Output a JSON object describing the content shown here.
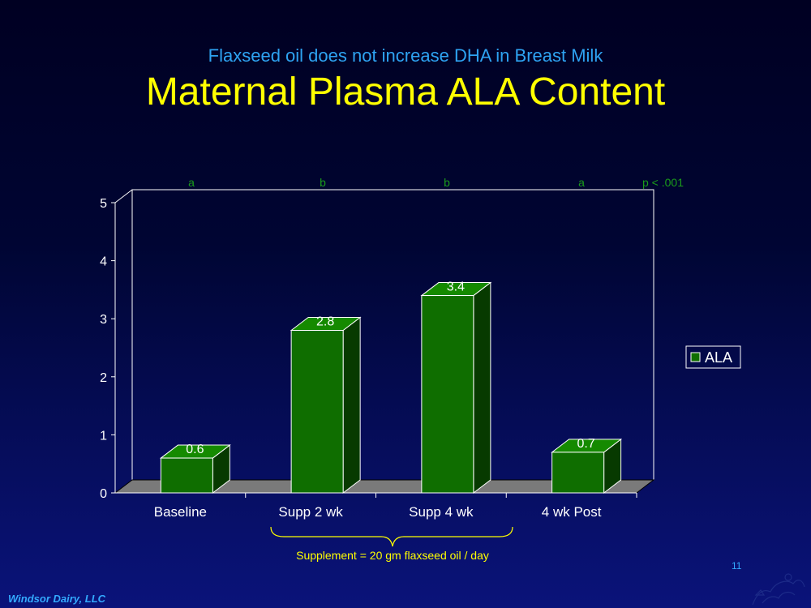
{
  "slide": {
    "subtitle": "Flaxseed oil does not increase DHA in Breast Milk",
    "title": "Maternal Plasma ALA Content",
    "footer": "Windsor Dairy, LLC",
    "slide_number": "11"
  },
  "colors": {
    "bar_front": "#0f6e00",
    "bar_top": "#158a00",
    "bar_side": "#073a00",
    "text_green": "#1a9c1a",
    "yellow": "#ffff00",
    "blue_text": "#2ea3f2",
    "floor": "#7a7a7a"
  },
  "chart_data": {
    "type": "bar",
    "categories": [
      "Baseline",
      "Supp 2 wk",
      "Supp 4 wk",
      "4 wk Post"
    ],
    "series": [
      {
        "name": "ALA",
        "values": [
          0.6,
          2.8,
          3.4,
          0.7
        ]
      }
    ],
    "data_labels": [
      "0.6",
      "2.8",
      "3.4",
      "0.7"
    ],
    "significance_letters": [
      "a",
      "b",
      "b",
      "a"
    ],
    "p_value": "p < .001",
    "ylim": [
      0,
      5
    ],
    "yticks": [
      0,
      1,
      2,
      3,
      4,
      5
    ],
    "grid": false,
    "legend_position": "right",
    "annotation": "Supplement = 20 gm flaxseed oil / day"
  }
}
